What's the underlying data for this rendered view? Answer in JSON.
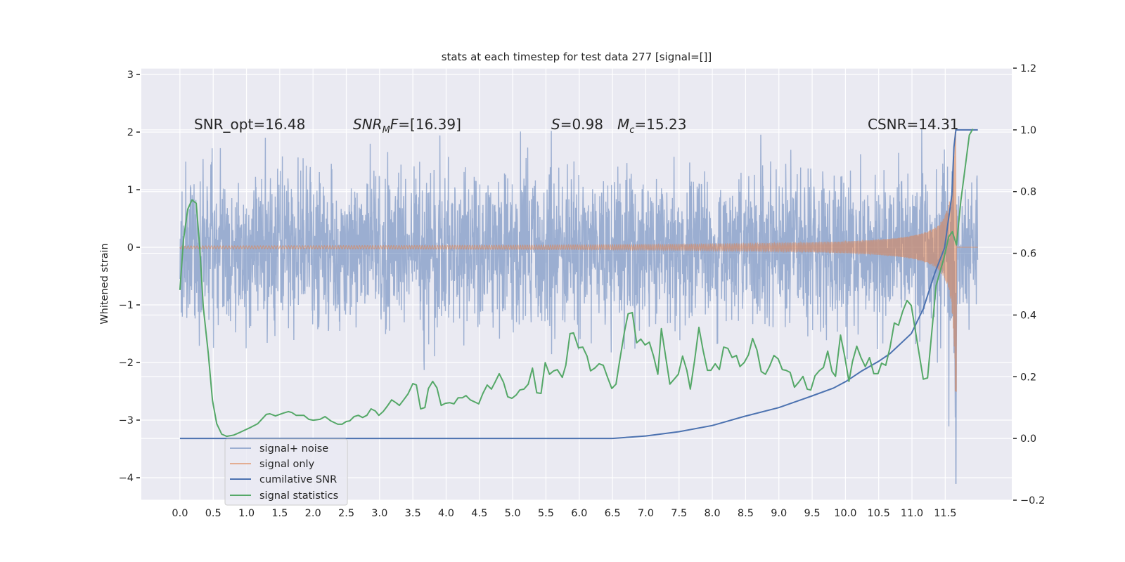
{
  "chart_data": {
    "type": "line",
    "title": "stats at each timestep for test data 277 [signal=[]]",
    "xlabel": "",
    "ylabel": "Whitened strain",
    "ylabel_right": "",
    "xlim": [
      -0.58,
      12.5
    ],
    "ylim": [
      -4.39,
      3.11
    ],
    "ylim_right": [
      -0.2,
      1.2
    ],
    "grid": true,
    "x_ticks": [
      "0.0",
      "0.5",
      "1.0",
      "1.5",
      "2.0",
      "2.5",
      "3.0",
      "3.5",
      "4.0",
      "4.5",
      "5.0",
      "5.5",
      "6.0",
      "6.5",
      "7.0",
      "7.5",
      "8.0",
      "8.5",
      "9.0",
      "9.5",
      "10.0",
      "10.5",
      "11.0",
      "11.5"
    ],
    "y_ticks_left": [
      "3",
      "2",
      "1",
      "0",
      "−1",
      "−2",
      "−3",
      "−4"
    ],
    "y_ticks_right": [
      "1.2",
      "1.0",
      "0.8",
      "0.6",
      "0.4",
      "0.2",
      "0.0",
      "−0.2"
    ],
    "legend_placement": "lower-left",
    "colors": {
      "noise": "#4c72b0",
      "signal": "#dd8452",
      "csnr": "#4c72b0",
      "stats": "#55a868",
      "background": "#eaeaf2"
    },
    "series": [
      {
        "name": "signal+ noise",
        "axis": "left",
        "kind": "whitened strain, gaussian noise + signal",
        "noise_std": 0.65,
        "samples": 3000,
        "x_range": [
          0,
          11.99
        ],
        "merger_spike": [
          11.66,
          -4.1
        ]
      },
      {
        "name": "signal only",
        "axis": "left",
        "kind": "chirp",
        "coalescence_time": 11.67,
        "amp_scale": 0.15,
        "amp_power": 0.75,
        "min_value": -2.5,
        "x_range": [
          0,
          11.99
        ]
      },
      {
        "name": "cumilative SNR",
        "axis": "right",
        "points": [
          [
            0,
            0
          ],
          [
            6.5,
            0
          ],
          [
            7.0,
            0.008
          ],
          [
            7.5,
            0.022
          ],
          [
            8.0,
            0.042
          ],
          [
            8.47,
            0.071
          ],
          [
            9.0,
            0.1
          ],
          [
            9.5,
            0.138
          ],
          [
            9.82,
            0.163
          ],
          [
            10.01,
            0.185
          ],
          [
            10.24,
            0.218
          ],
          [
            10.5,
            0.25
          ],
          [
            10.67,
            0.275
          ],
          [
            10.99,
            0.34
          ],
          [
            11.17,
            0.42
          ],
          [
            11.34,
            0.534
          ],
          [
            11.49,
            0.618
          ],
          [
            11.6,
            0.79
          ],
          [
            11.63,
            0.944
          ],
          [
            11.66,
            1.0
          ],
          [
            11.99,
            1.0
          ]
        ]
      },
      {
        "name": "signal statistics",
        "axis": "right",
        "points": [
          [
            0.0,
            0.481
          ],
          [
            0.053,
            0.643
          ],
          [
            0.117,
            0.743
          ],
          [
            0.181,
            0.773
          ],
          [
            0.245,
            0.762
          ],
          [
            0.298,
            0.618
          ],
          [
            0.351,
            0.426
          ],
          [
            0.426,
            0.276
          ],
          [
            0.489,
            0.123
          ],
          [
            0.553,
            0.048
          ],
          [
            0.628,
            0.014
          ],
          [
            0.702,
            0.007
          ],
          [
            0.809,
            0.011
          ],
          [
            0.915,
            0.021
          ],
          [
            1.064,
            0.036
          ],
          [
            1.17,
            0.048
          ],
          [
            1.298,
            0.078
          ],
          [
            1.351,
            0.08
          ],
          [
            1.436,
            0.073
          ],
          [
            1.553,
            0.082
          ],
          [
            1.628,
            0.087
          ],
          [
            1.681,
            0.084
          ],
          [
            1.745,
            0.075
          ],
          [
            1.862,
            0.075
          ],
          [
            1.936,
            0.062
          ],
          [
            2.0,
            0.059
          ],
          [
            2.106,
            0.062
          ],
          [
            2.181,
            0.071
          ],
          [
            2.266,
            0.057
          ],
          [
            2.372,
            0.046
          ],
          [
            2.436,
            0.046
          ],
          [
            2.5,
            0.055
          ],
          [
            2.553,
            0.057
          ],
          [
            2.617,
            0.071
          ],
          [
            2.681,
            0.075
          ],
          [
            2.745,
            0.068
          ],
          [
            2.809,
            0.075
          ],
          [
            2.872,
            0.096
          ],
          [
            2.936,
            0.089
          ],
          [
            2.989,
            0.075
          ],
          [
            3.053,
            0.087
          ],
          [
            3.117,
            0.105
          ],
          [
            3.181,
            0.125
          ],
          [
            3.245,
            0.116
          ],
          [
            3.298,
            0.107
          ],
          [
            3.362,
            0.125
          ],
          [
            3.426,
            0.144
          ],
          [
            3.5,
            0.178
          ],
          [
            3.553,
            0.173
          ],
          [
            3.617,
            0.096
          ],
          [
            3.681,
            0.1
          ],
          [
            3.734,
            0.162
          ],
          [
            3.798,
            0.185
          ],
          [
            3.862,
            0.164
          ],
          [
            3.926,
            0.107
          ],
          [
            3.989,
            0.114
          ],
          [
            4.053,
            0.116
          ],
          [
            4.117,
            0.112
          ],
          [
            4.181,
            0.132
          ],
          [
            4.245,
            0.132
          ],
          [
            4.298,
            0.139
          ],
          [
            4.362,
            0.125
          ],
          [
            4.489,
            0.112
          ],
          [
            4.553,
            0.146
          ],
          [
            4.617,
            0.173
          ],
          [
            4.681,
            0.16
          ],
          [
            4.734,
            0.182
          ],
          [
            4.798,
            0.21
          ],
          [
            4.862,
            0.182
          ],
          [
            4.926,
            0.135
          ],
          [
            4.989,
            0.13
          ],
          [
            5.053,
            0.141
          ],
          [
            5.106,
            0.157
          ],
          [
            5.17,
            0.16
          ],
          [
            5.234,
            0.176
          ],
          [
            5.298,
            0.228
          ],
          [
            5.362,
            0.148
          ],
          [
            5.426,
            0.146
          ],
          [
            5.489,
            0.246
          ],
          [
            5.553,
            0.208
          ],
          [
            5.617,
            0.219
          ],
          [
            5.67,
            0.223
          ],
          [
            5.745,
            0.198
          ],
          [
            5.798,
            0.237
          ],
          [
            5.862,
            0.34
          ],
          [
            5.915,
            0.342
          ],
          [
            5.989,
            0.294
          ],
          [
            6.053,
            0.296
          ],
          [
            6.117,
            0.267
          ],
          [
            6.17,
            0.219
          ],
          [
            6.234,
            0.228
          ],
          [
            6.298,
            0.242
          ],
          [
            6.362,
            0.237
          ],
          [
            6.426,
            0.198
          ],
          [
            6.489,
            0.162
          ],
          [
            6.553,
            0.176
          ],
          [
            6.606,
            0.249
          ],
          [
            6.681,
            0.347
          ],
          [
            6.734,
            0.404
          ],
          [
            6.798,
            0.408
          ],
          [
            6.862,
            0.31
          ],
          [
            6.926,
            0.322
          ],
          [
            6.989,
            0.303
          ],
          [
            7.053,
            0.312
          ],
          [
            7.117,
            0.267
          ],
          [
            7.181,
            0.208
          ],
          [
            7.234,
            0.356
          ],
          [
            7.298,
            0.267
          ],
          [
            7.362,
            0.176
          ],
          [
            7.426,
            0.192
          ],
          [
            7.489,
            0.208
          ],
          [
            7.553,
            0.267
          ],
          [
            7.617,
            0.221
          ],
          [
            7.67,
            0.16
          ],
          [
            7.734,
            0.253
          ],
          [
            7.798,
            0.36
          ],
          [
            7.862,
            0.285
          ],
          [
            7.926,
            0.221
          ],
          [
            7.979,
            0.221
          ],
          [
            8.043,
            0.242
          ],
          [
            8.106,
            0.223
          ],
          [
            8.17,
            0.296
          ],
          [
            8.234,
            0.292
          ],
          [
            8.298,
            0.262
          ],
          [
            8.362,
            0.269
          ],
          [
            8.415,
            0.233
          ],
          [
            8.479,
            0.246
          ],
          [
            8.543,
            0.271
          ],
          [
            8.606,
            0.324
          ],
          [
            8.67,
            0.287
          ],
          [
            8.734,
            0.217
          ],
          [
            8.798,
            0.208
          ],
          [
            8.862,
            0.235
          ],
          [
            8.926,
            0.269
          ],
          [
            8.989,
            0.258
          ],
          [
            9.053,
            0.223
          ],
          [
            9.106,
            0.221
          ],
          [
            9.17,
            0.214
          ],
          [
            9.234,
            0.166
          ],
          [
            9.298,
            0.182
          ],
          [
            9.362,
            0.201
          ],
          [
            9.426,
            0.16
          ],
          [
            9.479,
            0.157
          ],
          [
            9.543,
            0.203
          ],
          [
            9.606,
            0.219
          ],
          [
            9.67,
            0.23
          ],
          [
            9.734,
            0.283
          ],
          [
            9.798,
            0.217
          ],
          [
            9.851,
            0.201
          ],
          [
            9.926,
            0.335
          ],
          [
            9.989,
            0.267
          ],
          [
            10.053,
            0.185
          ],
          [
            10.106,
            0.249
          ],
          [
            10.17,
            0.299
          ],
          [
            10.234,
            0.262
          ],
          [
            10.298,
            0.233
          ],
          [
            10.362,
            0.262
          ],
          [
            10.426,
            0.21
          ],
          [
            10.489,
            0.21
          ],
          [
            10.543,
            0.244
          ],
          [
            10.606,
            0.237
          ],
          [
            10.67,
            0.295
          ],
          [
            10.734,
            0.374
          ],
          [
            10.798,
            0.367
          ],
          [
            10.862,
            0.413
          ],
          [
            10.926,
            0.447
          ],
          [
            10.989,
            0.431
          ],
          [
            11.17,
            0.192
          ],
          [
            11.234,
            0.196
          ],
          [
            11.362,
            0.495
          ],
          [
            11.479,
            0.584
          ],
          [
            11.553,
            0.654
          ],
          [
            11.606,
            0.67
          ],
          [
            11.67,
            0.627
          ],
          [
            11.734,
            0.769
          ],
          [
            11.862,
            0.983
          ],
          [
            11.915,
            1.003
          ]
        ]
      }
    ],
    "annotations": {
      "snr_opt": "SNR_opt=16.48",
      "snr_mf": {
        "main": "SNR",
        "sub": "M",
        "rest": "F",
        "value": "=[16.39]"
      },
      "s": {
        "symbol": "S",
        "value": "=0.98"
      },
      "mc": {
        "symbol": "M",
        "sub": "c",
        "value": "=15.23"
      },
      "csnr": "CSNR=14.31"
    },
    "legend": [
      "signal+ noise",
      "signal only",
      "cumilative SNR",
      "signal statistics"
    ]
  }
}
